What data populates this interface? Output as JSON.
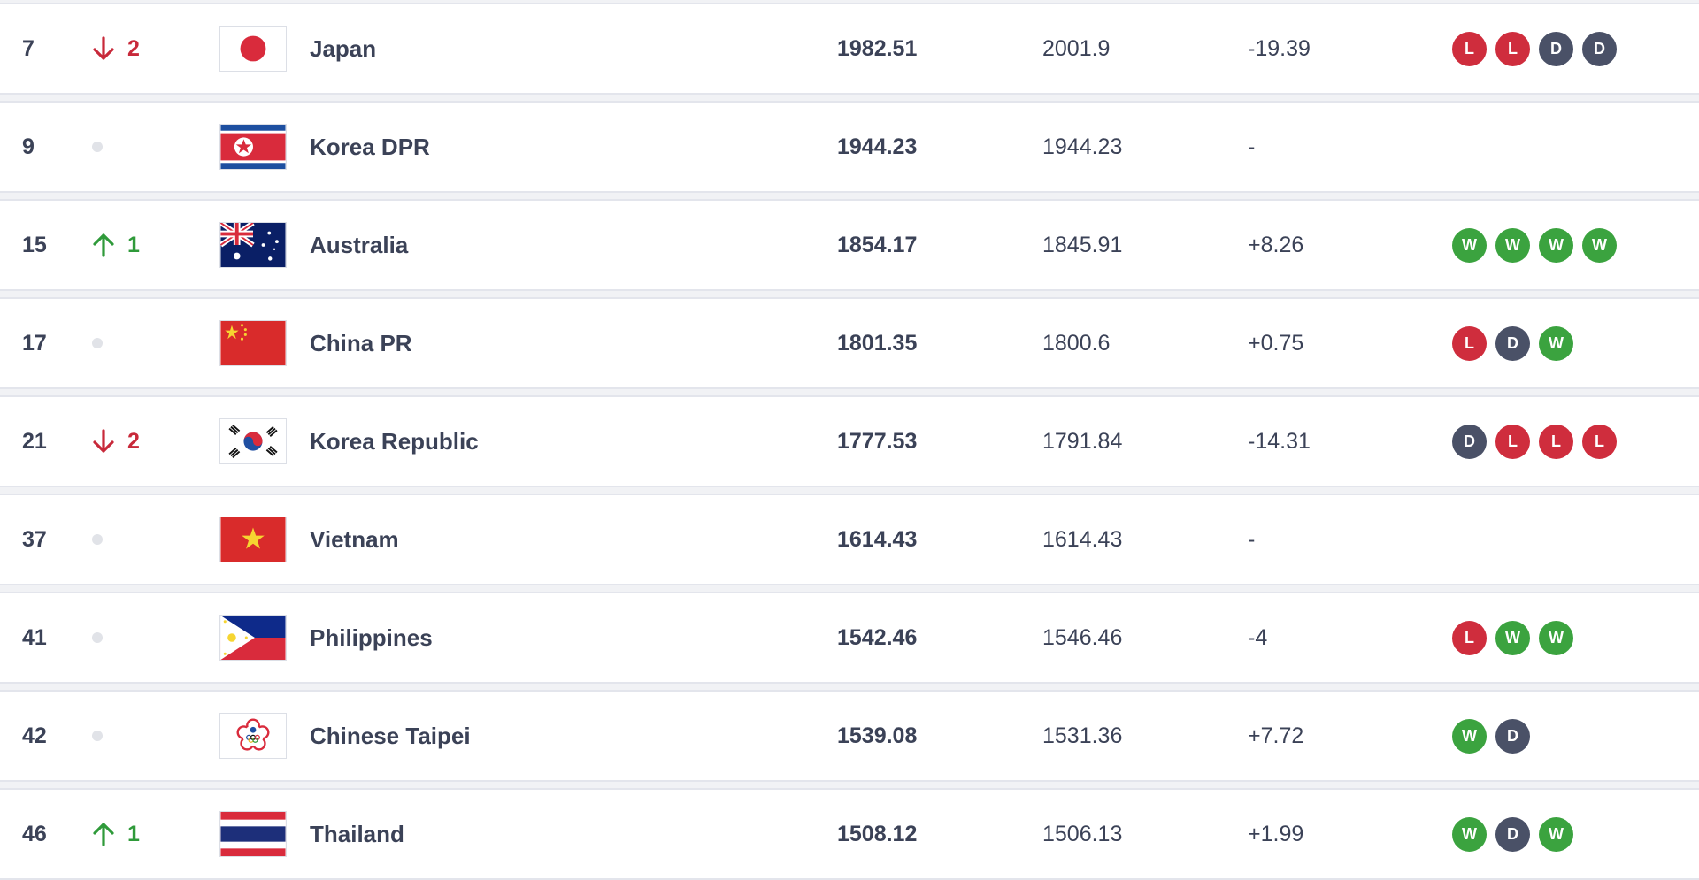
{
  "colors": {
    "win": "#3ba33f",
    "loss": "#cf2d3d",
    "draw": "#4a5167",
    "up": "#2f9a3a",
    "down": "#c8293a"
  },
  "rows": [
    {
      "rank": "7",
      "move_dir": "down",
      "move_icon": "arrow-down-icon",
      "move": "2",
      "team": "Japan",
      "flag": "japan-flag",
      "total": "1982.51",
      "prev": "2001.9",
      "diff": "-19.39",
      "form": [
        "L",
        "L",
        "D",
        "D"
      ]
    },
    {
      "rank": "9",
      "move_dir": "none",
      "move_icon": "no-change-dot-icon",
      "move": "",
      "team": "Korea DPR",
      "flag": "korea-dpr-flag",
      "total": "1944.23",
      "prev": "1944.23",
      "diff": "-",
      "form": []
    },
    {
      "rank": "15",
      "move_dir": "up",
      "move_icon": "arrow-up-icon",
      "move": "1",
      "team": "Australia",
      "flag": "australia-flag",
      "total": "1854.17",
      "prev": "1845.91",
      "diff": "+8.26",
      "form": [
        "W",
        "W",
        "W",
        "W"
      ]
    },
    {
      "rank": "17",
      "move_dir": "none",
      "move_icon": "no-change-dot-icon",
      "move": "",
      "team": "China PR",
      "flag": "china-pr-flag",
      "total": "1801.35",
      "prev": "1800.6",
      "diff": "+0.75",
      "form": [
        "L",
        "D",
        "W"
      ]
    },
    {
      "rank": "21",
      "move_dir": "down",
      "move_icon": "arrow-down-icon",
      "move": "2",
      "team": "Korea Republic",
      "flag": "korea-republic-flag",
      "total": "1777.53",
      "prev": "1791.84",
      "diff": "-14.31",
      "form": [
        "D",
        "L",
        "L",
        "L"
      ]
    },
    {
      "rank": "37",
      "move_dir": "none",
      "move_icon": "no-change-dot-icon",
      "move": "",
      "team": "Vietnam",
      "flag": "vietnam-flag",
      "total": "1614.43",
      "prev": "1614.43",
      "diff": "-",
      "form": []
    },
    {
      "rank": "41",
      "move_dir": "none",
      "move_icon": "no-change-dot-icon",
      "move": "",
      "team": "Philippines",
      "flag": "philippines-flag",
      "total": "1542.46",
      "prev": "1546.46",
      "diff": "-4",
      "form": [
        "L",
        "W",
        "W"
      ]
    },
    {
      "rank": "42",
      "move_dir": "none",
      "move_icon": "no-change-dot-icon",
      "move": "",
      "team": "Chinese Taipei",
      "flag": "chinese-taipei-flag",
      "total": "1539.08",
      "prev": "1531.36",
      "diff": "+7.72",
      "form": [
        "W",
        "D"
      ]
    },
    {
      "rank": "46",
      "move_dir": "up",
      "move_icon": "arrow-up-icon",
      "move": "1",
      "team": "Thailand",
      "flag": "thailand-flag",
      "total": "1508.12",
      "prev": "1506.13",
      "diff": "+1.99",
      "form": [
        "W",
        "D",
        "W"
      ]
    }
  ]
}
